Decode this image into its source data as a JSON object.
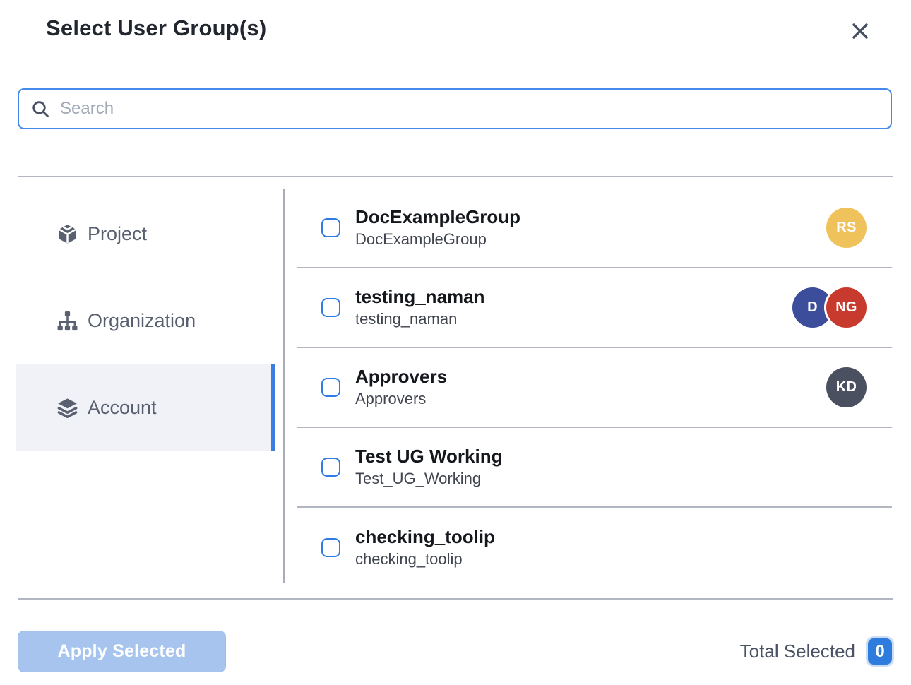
{
  "modal": {
    "title": "Select User Group(s)"
  },
  "search": {
    "placeholder": "Search",
    "value": ""
  },
  "sidebar": {
    "tabs": [
      {
        "label": "Project",
        "icon": "cube-icon",
        "active": false
      },
      {
        "label": "Organization",
        "icon": "org-chart-icon",
        "active": false
      },
      {
        "label": "Account",
        "icon": "layers-icon",
        "active": true
      }
    ]
  },
  "groups": [
    {
      "title": "DocExampleGroup",
      "subtitle": "DocExampleGroup",
      "checked": false,
      "avatars": [
        {
          "initials": "RS",
          "color": "#efc25c"
        }
      ]
    },
    {
      "title": "testing_naman",
      "subtitle": "testing_naman",
      "checked": false,
      "avatars": [
        {
          "initials": "D",
          "color": "#3c4d9b"
        },
        {
          "initials": "NG",
          "color": "#c83a2d"
        }
      ]
    },
    {
      "title": "Approvers",
      "subtitle": "Approvers",
      "checked": false,
      "avatars": [
        {
          "initials": "KD",
          "color": "#4a505f"
        }
      ]
    },
    {
      "title": "Test UG Working",
      "subtitle": "Test_UG_Working",
      "checked": false,
      "avatars": []
    },
    {
      "title": "checking_toolip",
      "subtitle": "checking_toolip",
      "checked": false,
      "avatars": []
    }
  ],
  "footer": {
    "apply_label": "Apply Selected",
    "total_selected_label": "Total Selected",
    "total_selected_count": "0"
  },
  "colors": {
    "accent_blue": "#2e7dde",
    "checkbox_border": "#2f7ce5",
    "search_border": "#4589ec",
    "active_tab_bg": "#f1f2f8",
    "active_tab_bar": "#3a7ee2",
    "apply_disabled_bg": "#a6c4ed",
    "divider": "#b2b6c0",
    "icon_slate": "#59606f"
  }
}
